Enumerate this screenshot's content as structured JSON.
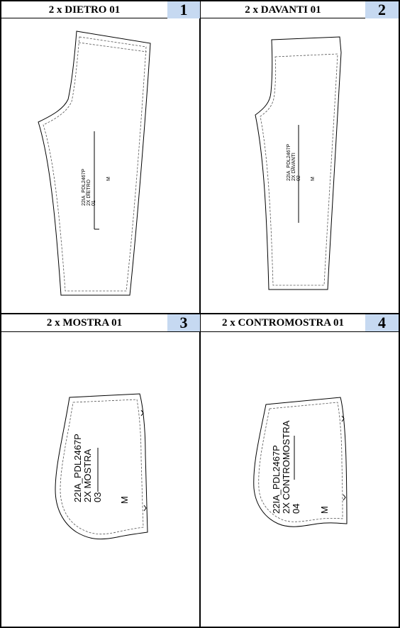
{
  "pieces": [
    {
      "title": "2 x DIETRO 01",
      "number": "1",
      "code": "22IA_PDL2467P",
      "name": "2X DIETRO",
      "id": "01",
      "size": "M"
    },
    {
      "title": "2 x DAVANTI 01",
      "number": "2",
      "code": "22IA_PDL2467P",
      "name": "2X DAVANTI",
      "id": "02",
      "size": "M"
    },
    {
      "title": "2 x MOSTRA 01",
      "number": "3",
      "code": "22IA_PDL2467P",
      "name": "2X MOSTRA",
      "id": "03",
      "size": "M"
    },
    {
      "title": "2 x CONTROMOSTRA 01",
      "number": "4",
      "code": "22IA_PDL2467P",
      "name": "2X CONTROMOSTRA",
      "id": "04",
      "size": "M"
    }
  ]
}
